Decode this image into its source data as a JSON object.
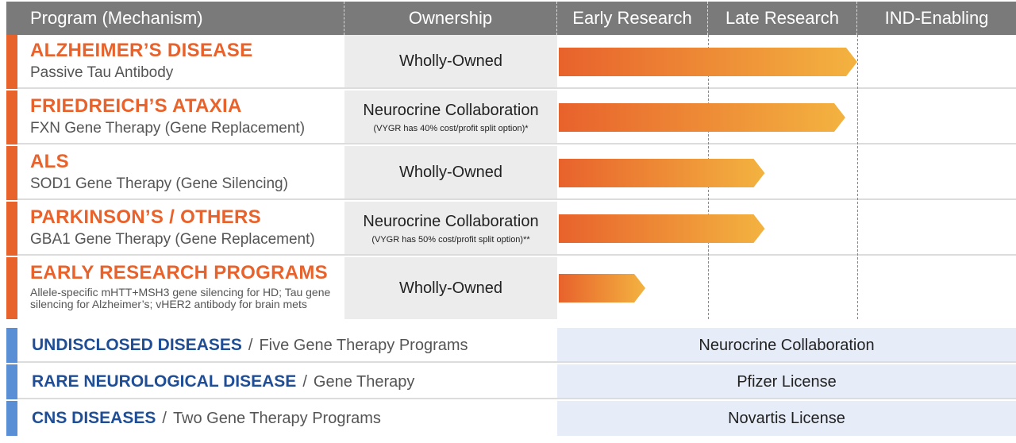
{
  "header": {
    "program": "Program (Mechanism)",
    "ownership": "Ownership",
    "early_research": "Early Research",
    "late_research": "Late Research",
    "ind_enabling": "IND-Enabling"
  },
  "programs": [
    {
      "title": "ALZHEIMER’S DISEASE",
      "subtitle": "Passive Tau Antibody",
      "ownership": "Wholly-Owned",
      "note": "",
      "progress": 1.0
    },
    {
      "title": "FRIEDREICH’S ATAXIA",
      "subtitle": "FXN Gene Therapy (Gene Replacement)",
      "ownership": "Neurocrine Collaboration",
      "note": "(VYGR has 40% cost/profit split option)*",
      "progress": 0.96
    },
    {
      "title": "ALS",
      "subtitle": "SOD1 Gene Therapy (Gene Silencing)",
      "ownership": "Wholly-Owned",
      "note": "",
      "progress": 0.69
    },
    {
      "title": "PARKINSON’S / OTHERS",
      "subtitle": "GBA1 Gene Therapy (Gene Replacement)",
      "ownership": "Neurocrine Collaboration",
      "note": "(VYGR has 50% cost/profit split option)**",
      "progress": 0.69
    },
    {
      "title": "EARLY RESEARCH PROGRAMS",
      "subtitle": "Allele-specific mHTT+MSH3 gene silencing for HD; Tau gene silencing for Alzheimer’s; vHER2 antibody for brain mets",
      "ownership": "Wholly-Owned",
      "note": "",
      "progress": 0.29
    }
  ],
  "partnered": [
    {
      "name": "UNDISCLOSED DISEASES",
      "separator": "/",
      "desc": "Five Gene Therapy Programs",
      "partner": "Neurocrine Collaboration"
    },
    {
      "name": "RARE NEUROLOGICAL DISEASE",
      "separator": "/",
      "desc": "Gene Therapy",
      "partner": "Pfizer License"
    },
    {
      "name": "CNS DISEASES",
      "separator": "/",
      "desc": "Two Gene Therapy Programs",
      "partner": "Novartis License"
    }
  ],
  "colors": {
    "bar_start": "#e8622c",
    "bar_end": "#f3b340",
    "accent_orange": "#e8622c",
    "accent_blue": "#5a8fd6",
    "partner_blue": "#1f4e96"
  }
}
